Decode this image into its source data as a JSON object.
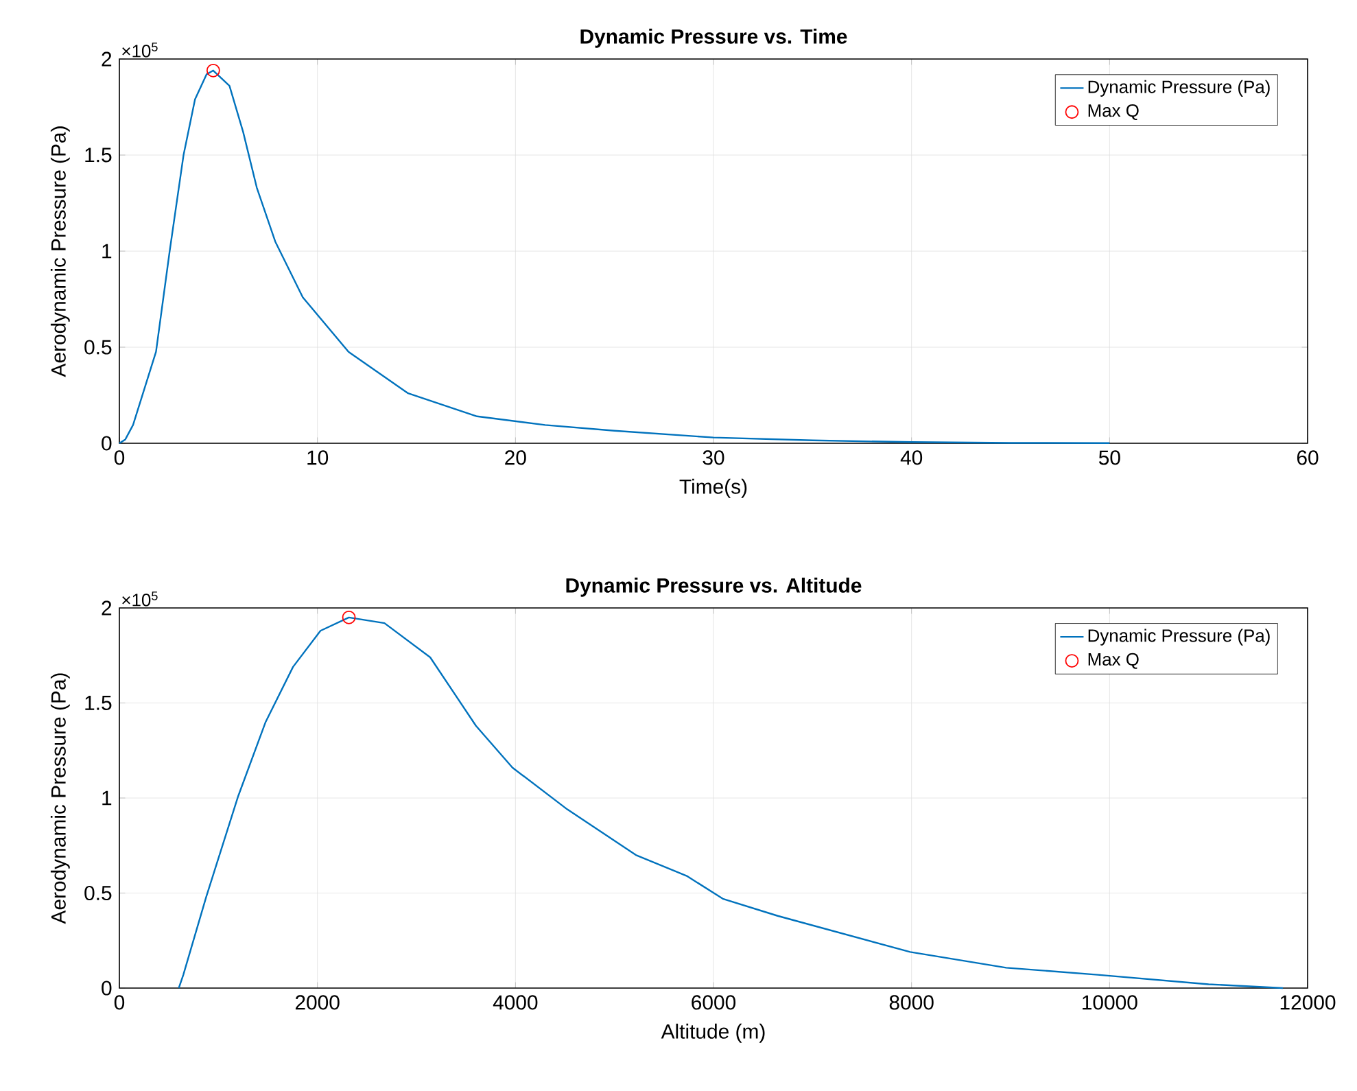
{
  "chart_data": [
    {
      "type": "line",
      "title": "Dynamic Pressure vs. Time",
      "xlabel": "Time(s)",
      "ylabel": "Aerodynamic Pressure (Pa)",
      "annotations": [
        "×10$^{5}$"
      ],
      "xlim": [
        0,
        60
      ],
      "xticks": [
        0,
        10,
        20,
        30,
        40,
        50,
        60
      ],
      "ylim": [
        0,
        2
      ],
      "yticks": [
        0,
        0.5,
        1,
        1.5,
        2
      ],
      "grid": true,
      "legend": "top right",
      "series": [
        {
          "name": "Dynamic Pressure (Pa)",
          "color": "#0072bd",
          "line_style": "solid",
          "marker": "none",
          "x": [
            0,
            0.3,
            0.69,
            1.85,
            2.54,
            3.24,
            3.82,
            4.4,
            4.74,
            5.56,
            6.25,
            6.94,
            7.87,
            9.26,
            11.57,
            14.58,
            18.06,
            21.5,
            25,
            30,
            35,
            40,
            45,
            50
          ],
          "values": [
            0,
            0.02,
            0.095,
            0.476,
            1.0,
            1.5,
            1.79,
            1.92,
            1.94,
            1.86,
            1.62,
            1.33,
            1.05,
            0.76,
            0.476,
            0.26,
            0.14,
            0.095,
            0.065,
            0.03,
            0.015,
            0.006,
            0.002,
            0.001
          ]
        },
        {
          "name": "Max Q",
          "type": "scatter",
          "color": "#ff0000",
          "marker": "circle",
          "x": [
            4.74
          ],
          "values": [
            1.94
          ]
        }
      ]
    },
    {
      "type": "line",
      "title": "Dynamic Pressure vs. Altitude",
      "xlabel": "Altitude (m)",
      "ylabel": "Aerodynamic Pressure (Pa)",
      "annotations": [
        "×10$^{5}$"
      ],
      "xlim": [
        0,
        12000
      ],
      "xticks": [
        0,
        2000,
        4000,
        6000,
        8000,
        10000,
        12000
      ],
      "ylim": [
        0,
        2
      ],
      "yticks": [
        0,
        0.5,
        1,
        1.5,
        2
      ],
      "grid": true,
      "legend": "top right",
      "series": [
        {
          "name": "Dynamic Pressure (Pa)",
          "color": "#0072bd",
          "line_style": "solid",
          "marker": "none",
          "x": [
            600,
            646,
            877,
            1200,
            1477,
            1754,
            2031,
            2318,
            2677,
            3139,
            3601,
            3970,
            4524,
            5216,
            5730,
            6094,
            6648,
            7986,
            8956,
            9880,
            11000,
            11750
          ],
          "values": [
            0,
            0.07,
            0.48,
            1.01,
            1.4,
            1.69,
            1.88,
            1.95,
            1.92,
            1.74,
            1.38,
            1.16,
            0.94,
            0.7,
            0.59,
            0.47,
            0.38,
            0.19,
            0.107,
            0.07,
            0.02,
            0
          ]
        },
        {
          "name": "Max Q",
          "type": "scatter",
          "color": "#ff0000",
          "marker": "circle",
          "x": [
            2318
          ],
          "values": [
            1.95
          ]
        }
      ]
    }
  ]
}
